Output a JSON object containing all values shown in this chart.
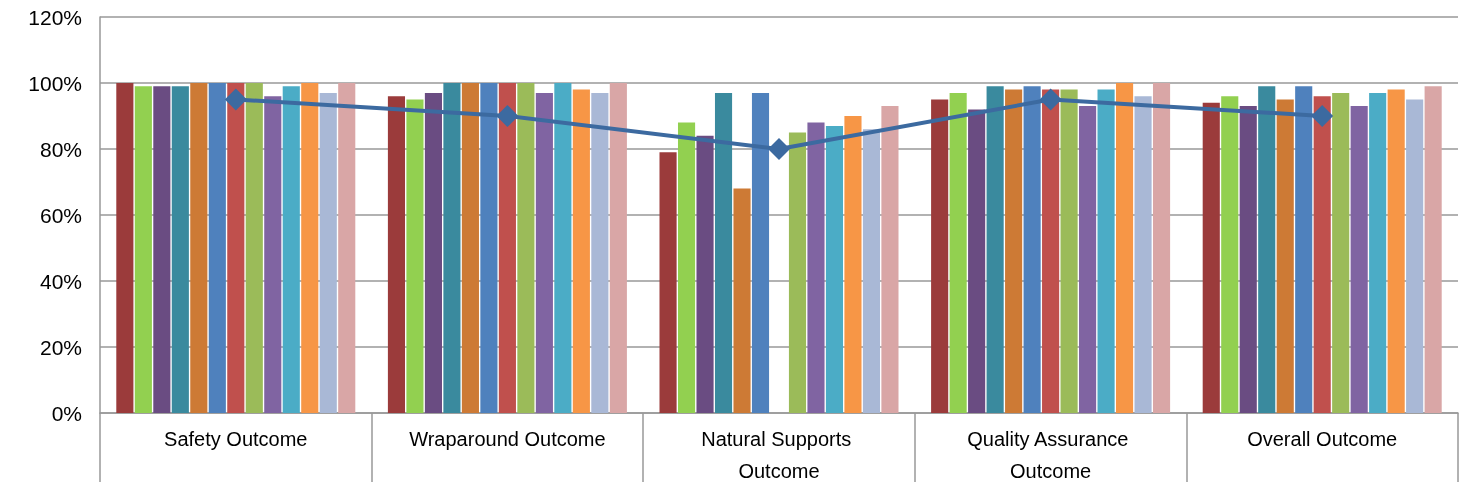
{
  "chart_data": {
    "type": "bar",
    "categories": [
      "Safety Outcome",
      "Wraparound Outcome",
      "Natural Supports Outcome",
      "Quality Assurance Outcome",
      "Overall Outcome"
    ],
    "series": [
      {
        "color": "#9b3b3b",
        "values": [
          100,
          96,
          79,
          95,
          94
        ]
      },
      {
        "color": "#92d050",
        "values": [
          99,
          95,
          88,
          97,
          96
        ]
      },
      {
        "color": "#6a4c82",
        "values": [
          99,
          97,
          84,
          92,
          93
        ]
      },
      {
        "color": "#3a8a9e",
        "values": [
          99,
          100,
          97,
          99,
          99
        ]
      },
      {
        "color": "#cd7a35",
        "values": [
          100,
          100,
          68,
          98,
          95
        ]
      },
      {
        "color": "#4f81bd",
        "values": [
          100,
          100,
          97,
          99,
          99
        ]
      },
      {
        "color": "#c0504d",
        "values": [
          100,
          100,
          null,
          98,
          96
        ]
      },
      {
        "color": "#9bbb59",
        "values": [
          100,
          100,
          85,
          98,
          97
        ]
      },
      {
        "color": "#8064a2",
        "values": [
          96,
          97,
          88,
          93,
          93
        ]
      },
      {
        "color": "#4bacc6",
        "values": [
          99,
          100,
          87,
          98,
          97
        ]
      },
      {
        "color": "#f79646",
        "values": [
          100,
          98,
          90,
          100,
          98
        ]
      },
      {
        "color": "#a9b8d6",
        "values": [
          97,
          97,
          86,
          96,
          95
        ]
      },
      {
        "color": "#d9a6a6",
        "values": [
          100,
          100,
          93,
          100,
          99
        ]
      },
      {
        "type": "line",
        "color": "#3c6aa0",
        "values": [
          95,
          90,
          80,
          95,
          90
        ],
        "marker": "diamond",
        "line_style": "solid"
      }
    ],
    "ylim": [
      0,
      120
    ],
    "yticks": [
      {
        "value": 0,
        "label": "0%"
      },
      {
        "value": 20,
        "label": "20%"
      },
      {
        "value": 40,
        "label": "40%"
      },
      {
        "value": 60,
        "label": "60%"
      },
      {
        "value": 80,
        "label": "80%"
      },
      {
        "value": 100,
        "label": "100%"
      },
      {
        "value": 120,
        "label": "120%"
      }
    ],
    "grid": "y"
  }
}
